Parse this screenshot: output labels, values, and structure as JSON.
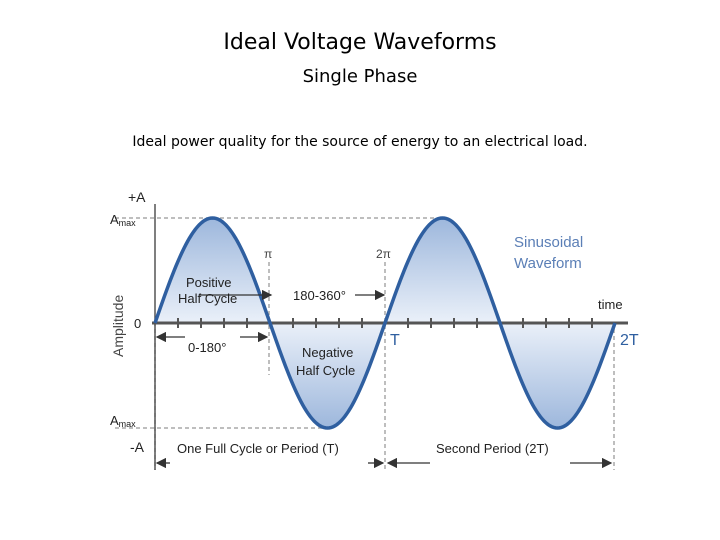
{
  "slide": {
    "title": "Ideal Voltage Waveforms",
    "subtitle": "Single Phase",
    "description": "Ideal power quality for the source of energy to an electrical load."
  },
  "diagram": {
    "y_axis_title": "Amplitude",
    "x_axis_title": "time",
    "plus_a": "+A",
    "minus_a": "-A",
    "amax_top": "A",
    "amax_top_sub": "max",
    "amax_bottom": "A",
    "amax_bottom_sub": "max",
    "zero": "0",
    "pi": "π",
    "two_pi": "2π",
    "t_label": "T",
    "two_t_label": "2T",
    "positive_half_line1": "Positive",
    "positive_half_line2": "Half Cycle",
    "negative_half_line1": "Negative",
    "negative_half_line2": "Half Cycle",
    "range_180_360": "180-360°",
    "range_0_180": "0-180°",
    "waveform_line1": "Sinusoidal",
    "waveform_line2": "Waveform",
    "full_cycle": "One Full Cycle or Period (T)",
    "second_period": "Second Period (2T)",
    "colors": {
      "wave": "#2f5fa0",
      "fill_dark": "#9db7dc",
      "fill_light": "#eaf0f9",
      "axis": "#555555",
      "dashed": "#a8a8a8",
      "waveform_label": "#5b7fb6"
    }
  }
}
